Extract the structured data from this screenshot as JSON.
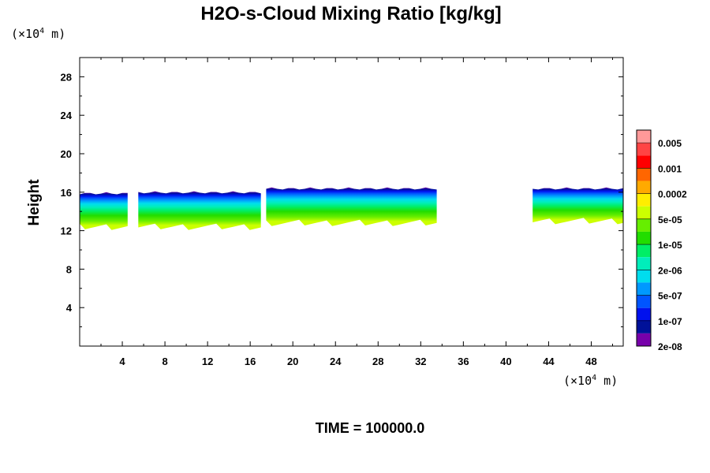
{
  "chart_data": {
    "type": "heatmap",
    "title": "H2O-s-Cloud Mixing Ratio [kg/kg]",
    "ylabel": "Height",
    "xlabel": "",
    "x_unit": {
      "prefix": "(×10",
      "exp": "4",
      "suffix": " m)"
    },
    "y_unit": {
      "prefix": "(×10",
      "exp": "4",
      "suffix": " m)"
    },
    "xlim": [
      0,
      51
    ],
    "ylim": [
      0,
      30
    ],
    "x_ticks": [
      4,
      8,
      12,
      16,
      20,
      24,
      28,
      32,
      36,
      40,
      44,
      48
    ],
    "y_ticks": [
      4,
      8,
      12,
      16,
      20,
      24,
      28
    ],
    "time_label": "TIME = 100000.0",
    "colorbar": {
      "levels": [
        "0.005",
        "0.001",
        "0.0002",
        "5e-05",
        "1e-05",
        "2e-06",
        "5e-07",
        "1e-07",
        "2e-08"
      ],
      "colors_top_to_bottom": [
        "#ff9999",
        "#ff4444",
        "#ff0000",
        "#ff6600",
        "#ffaa00",
        "#ffee00",
        "#ccff00",
        "#66ee00",
        "#22dd00",
        "#00ee66",
        "#00eebb",
        "#00ddee",
        "#0099ff",
        "#0055ff",
        "#0011ee",
        "#001199",
        "#7700aa"
      ]
    },
    "cloud_regions": [
      {
        "x_start": 0.0,
        "x_end": 4.5,
        "top": 16.0,
        "bottom": 12.4
      },
      {
        "x_start": 5.5,
        "x_end": 17.0,
        "top": 16.1,
        "bottom": 12.4
      },
      {
        "x_start": 17.5,
        "x_end": 33.5,
        "top": 16.5,
        "bottom": 12.8
      },
      {
        "x_start": 42.5,
        "x_end": 51.0,
        "top": 16.5,
        "bottom": 13.0
      }
    ]
  }
}
